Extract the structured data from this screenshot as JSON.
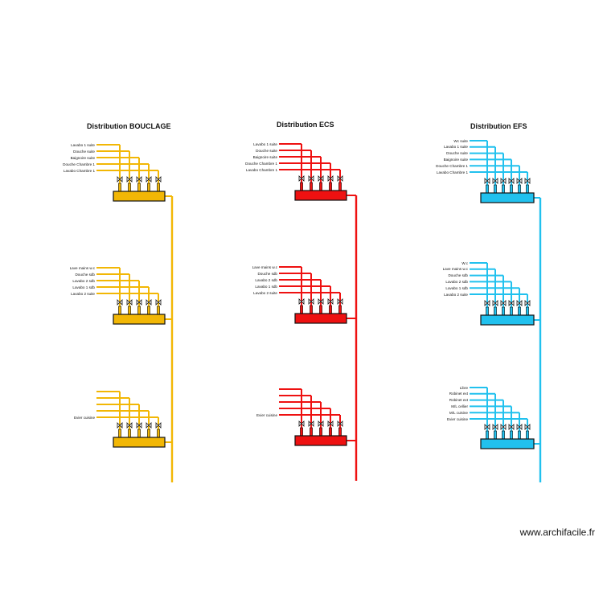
{
  "watermark": "www.archifacile.fr",
  "colors": {
    "bouclage": "#f2b705",
    "ecs": "#ee1111",
    "efs": "#21c1ee",
    "outline": "#111111"
  },
  "sections": [
    {
      "id": "bouclage",
      "title": "Distribution BOUCLAGE",
      "color": "#f2b705",
      "manifolds": [
        {
          "labels": [
            "Lavabo 1 suite",
            "Douche suite",
            "Baignoire suite",
            "Douche Chambre 1",
            "Lavabo Chambre 1"
          ],
          "pipes": 5
        },
        {
          "labels": [
            "Lave mains w.c",
            "Douche sdb",
            "Lavabo 2 sdb",
            "Lavabo 1 sdb",
            "Lavabo 2 suite"
          ],
          "pipes": 5
        },
        {
          "labels": [
            "",
            "",
            "",
            "",
            "Evier cuisine"
          ],
          "pipes": 5
        }
      ]
    },
    {
      "id": "ecs",
      "title": "Distribution ECS",
      "color": "#ee1111",
      "manifolds": [
        {
          "labels": [
            "Lavabo 1 suite",
            "Douche suite",
            "Baignoire suite",
            "Douche Chambre 1",
            "Lavabo Chambre 1"
          ],
          "pipes": 5
        },
        {
          "labels": [
            "Lave mains w.c",
            "Douche sdb",
            "Lavabo 2 sdb",
            "Lavabo 1 sdb",
            "Lavabo 2 suite"
          ],
          "pipes": 5
        },
        {
          "labels": [
            "",
            "",
            "",
            "",
            "Evier cuisine"
          ],
          "pipes": 5
        }
      ]
    },
    {
      "id": "efs",
      "title": "Distribution EFS",
      "color": "#21c1ee",
      "manifolds": [
        {
          "labels": [
            "Wc suite",
            "Lavabo 1 suite",
            "Douche suite",
            "Baignoire suite",
            "Douche Chambre 1",
            "Lavabo Chambre 1"
          ],
          "pipes": 6
        },
        {
          "labels": [
            "W.c",
            "Lave mains w.c",
            "Douche sdb",
            "Lavabo 2 sdb",
            "Lavabo 1 sdb",
            "Lavabo 2 suite"
          ],
          "pipes": 6
        },
        {
          "labels": [
            "Libre",
            "Robinet ext",
            "Robinet ext",
            "M/L cellier",
            "M/L cuisine",
            "Evier cuisine"
          ],
          "pipes": 6
        }
      ]
    }
  ]
}
